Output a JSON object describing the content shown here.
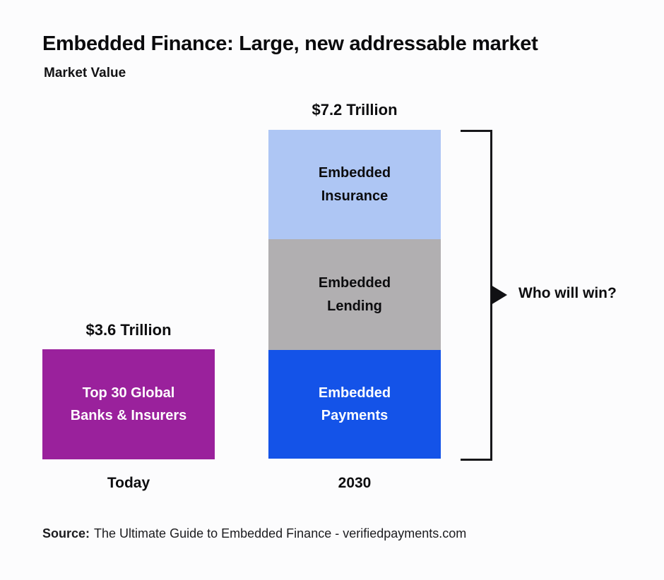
{
  "header": {
    "title": "Embedded Finance: Large, new addressable market",
    "subtitle": "Market Value"
  },
  "chart_data": {
    "type": "bar",
    "stacked": true,
    "title": "Embedded Finance: Large, new addressable market",
    "ylabel": "Market Value",
    "unit": "Trillion USD",
    "legend_position": "none",
    "grid": false,
    "categories": [
      "Today",
      "2030"
    ],
    "bars": [
      {
        "category": "Today",
        "total_label": "$3.6 Trillion",
        "total_value_trillions": 3.6,
        "segments": [
          {
            "label": "Top 30 Global Banks & Insurers",
            "value_trillions": 3.6,
            "color": "#9a219c",
            "text_color": "#ffffff"
          }
        ]
      },
      {
        "category": "2030",
        "total_label": "$7.2 Trillion",
        "total_value_trillions": 7.2,
        "segments": [
          {
            "label": "Embedded Payments",
            "value_trillions": 2.4,
            "color": "#1453e8",
            "text_color": "#ffffff"
          },
          {
            "label": "Embedded Lending",
            "value_trillions": 2.4,
            "color": "#b1afb1",
            "text_color": "#0c0c0e"
          },
          {
            "label": "Embedded Insurance",
            "value_trillions": 2.4,
            "color": "#aec6f4",
            "text_color": "#0c0c0e"
          }
        ]
      }
    ],
    "annotation": "Who will win?"
  },
  "footer": {
    "source_label": "Source:",
    "source_text": "The Ultimate Guide to Embedded Finance - verifiedpayments.com"
  }
}
